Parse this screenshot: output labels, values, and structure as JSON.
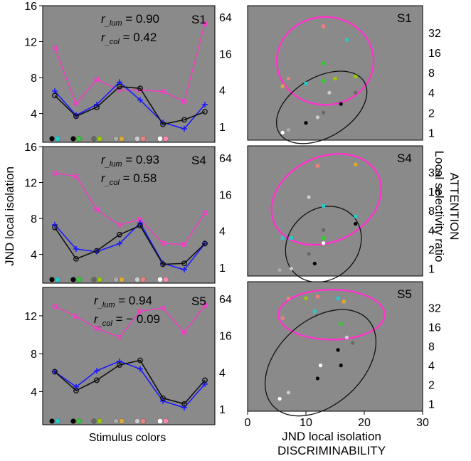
{
  "labels": {
    "left_ylabel": "JND local isolation",
    "left_xlabel": "Stimulus colors",
    "right_xlabel_1": "JND local isolation",
    "right_xlabel_2": "DISCRIMINABILITY",
    "right_ylabel_1": "ATTENTION",
    "right_ylabel_2": "Local selectivity ratio"
  },
  "colors": {
    "panel_bg": "#8a8a8a",
    "magenta": "#ff33cc",
    "blue": "#1a1aff",
    "black": "#111111",
    "stimulus": [
      "#000000",
      "#22cccc",
      "#000000",
      "#33cc33",
      "#666666",
      "#99cc00",
      "#aaaaaa",
      "#ddaa33",
      "#cccccc",
      "#f08080",
      "#ffffff",
      "#ff88aa"
    ]
  },
  "chart_data": [
    {
      "type": "line",
      "subject": "S1",
      "r_lum": "= 0.90",
      "r_col": "= 0.42",
      "left_yticks": [
        "4",
        "8",
        "12",
        "16"
      ],
      "right_yticks": [
        "1",
        "4",
        "16",
        "64"
      ],
      "series": [
        {
          "name": "",
          "axis": "right",
          "color": "magenta",
          "marker": "square",
          "values": [
            20,
            2.4,
            6,
            4,
            4,
            3.8,
            2.6,
            50
          ]
        },
        {
          "name": "",
          "axis": "left",
          "color": "blue",
          "marker": "plus",
          "values": [
            6.5,
            3.8,
            5,
            7.5,
            5.5,
            3,
            2.3,
            5
          ]
        },
        {
          "name": "",
          "axis": "left",
          "color": "black",
          "marker": "circle",
          "values": [
            6,
            3.7,
            4.7,
            7,
            6.8,
            2.8,
            3.3,
            4.2
          ]
        }
      ]
    },
    {
      "type": "line",
      "subject": "S4",
      "r_lum": "= 0.93",
      "r_col": "= 0.58",
      "left_yticks": [
        "4",
        "8",
        "12",
        "16"
      ],
      "right_yticks": [
        "1",
        "4",
        "16",
        "64"
      ],
      "series": [
        {
          "name": "",
          "axis": "right",
          "color": "magenta",
          "marker": "square",
          "values": [
            36,
            32,
            9,
            5,
            6.2,
            2.5,
            2.4,
            8
          ]
        },
        {
          "name": "",
          "axis": "left",
          "color": "blue",
          "marker": "plus",
          "values": [
            7.3,
            4.6,
            4.3,
            5.2,
            7.5,
            3,
            2.3,
            5.2
          ]
        },
        {
          "name": "",
          "axis": "left",
          "color": "black",
          "marker": "circle",
          "values": [
            7,
            3.5,
            4.4,
            6.2,
            7.2,
            2.9,
            3,
            5.2
          ]
        }
      ]
    },
    {
      "type": "line",
      "subject": "S5",
      "r_lum": "= 0.94",
      "r_col": "= − 0.09",
      "left_yticks": [
        "4",
        "8",
        "12"
      ],
      "right_yticks": [
        "1",
        "4",
        "16",
        "64"
      ],
      "series": [
        {
          "name": "",
          "axis": "right",
          "color": "magenta",
          "marker": "square",
          "values": [
            48,
            33,
            21,
            15,
            40,
            45,
            18,
            50
          ]
        },
        {
          "name": "",
          "axis": "left",
          "color": "blue",
          "marker": "plus",
          "values": [
            6.1,
            4.5,
            6.2,
            7.2,
            6.4,
            3,
            2.3,
            4.8
          ]
        },
        {
          "name": "",
          "axis": "left",
          "color": "black",
          "marker": "circle",
          "values": [
            6.1,
            4.1,
            5.2,
            6.8,
            7.3,
            3.3,
            2.7,
            5.2
          ]
        }
      ]
    },
    {
      "type": "scatter",
      "subject": "S1",
      "xlim": [
        0,
        30
      ],
      "xticks": [
        "0",
        "10",
        "20",
        "30"
      ],
      "yticks": [
        "1",
        "2",
        "4",
        "8",
        "16",
        "32"
      ],
      "points": [
        {
          "x": 6,
          "y": 1,
          "c": 10
        },
        {
          "x": 7,
          "y": 1.1,
          "c": 6
        },
        {
          "x": 10,
          "y": 1.4,
          "c": 2
        },
        {
          "x": 12,
          "y": 1.7,
          "c": 8
        },
        {
          "x": 13,
          "y": 2,
          "c": 4
        },
        {
          "x": 16,
          "y": 2.7,
          "c": 0
        },
        {
          "x": 14,
          "y": 4,
          "c": 8
        },
        {
          "x": 18.5,
          "y": 4,
          "c": 4
        },
        {
          "x": 7,
          "y": 6.5,
          "c": 9
        },
        {
          "x": 6,
          "y": 5,
          "c": 7
        },
        {
          "x": 10,
          "y": 5.5,
          "c": 1
        },
        {
          "x": 13,
          "y": 6,
          "c": 3
        },
        {
          "x": 15,
          "y": 6.5,
          "c": 5
        },
        {
          "x": 13,
          "y": 11,
          "c": 3
        },
        {
          "x": 18.5,
          "y": 7,
          "c": 5
        },
        {
          "x": 13,
          "y": 40,
          "c": 9
        },
        {
          "x": 17,
          "y": 25,
          "c": 1
        }
      ],
      "ellipses": [
        {
          "color": "magenta",
          "cx": 13.3,
          "cy": 12,
          "rx": 8.3,
          "ry": 2.2,
          "angle": 0
        },
        {
          "color": "black",
          "cx": 12.7,
          "cy": 2.4,
          "rx": 8.5,
          "ry": 1.5,
          "angle": -31
        }
      ]
    },
    {
      "type": "scatter",
      "subject": "S4",
      "xlim": [
        0,
        30
      ],
      "xticks": [
        "0",
        "10",
        "20",
        "30"
      ],
      "yticks": [
        "1",
        "2",
        "4",
        "8",
        "16",
        "32"
      ],
      "points": [
        {
          "x": 12,
          "y": 40,
          "c": 9
        },
        {
          "x": 18.5,
          "y": 42,
          "c": 7
        },
        {
          "x": 10.5,
          "y": 13,
          "c": 8
        },
        {
          "x": 13,
          "y": 9.5,
          "c": 1
        },
        {
          "x": 18.5,
          "y": 6.5,
          "c": 1
        },
        {
          "x": 6,
          "y": 3,
          "c": 1
        },
        {
          "x": 7.5,
          "y": 3,
          "c": 1
        },
        {
          "x": 13,
          "y": 3,
          "c": 3
        },
        {
          "x": 13,
          "y": 4,
          "c": 4
        },
        {
          "x": 13,
          "y": 2.5,
          "c": 10
        },
        {
          "x": 18.5,
          "y": 5,
          "c": 0
        },
        {
          "x": 10.5,
          "y": 1.7,
          "c": 4
        },
        {
          "x": 11.5,
          "y": 1.2,
          "c": 2
        },
        {
          "x": 7.5,
          "y": 1,
          "c": 8
        },
        {
          "x": 5.5,
          "y": 0.95,
          "c": 6
        }
      ],
      "ellipses": [
        {
          "color": "magenta",
          "cx": 13.5,
          "cy": 12,
          "rx": 9.8,
          "ry": 2.2,
          "angle": -25
        },
        {
          "color": "black",
          "cx": 13,
          "cy": 2.4,
          "rx": 7,
          "ry": 1.8,
          "angle": -45
        }
      ]
    },
    {
      "type": "scatter",
      "subject": "S5",
      "xlim": [
        0,
        30
      ],
      "xticks": [
        "0",
        "10",
        "20",
        "30"
      ],
      "yticks": [
        "1",
        "2",
        "4",
        "8",
        "16",
        "32"
      ],
      "points": [
        {
          "x": 7,
          "y": 45,
          "c": 9
        },
        {
          "x": 12,
          "y": 48,
          "c": 9
        },
        {
          "x": 15.5,
          "y": 45,
          "c": 1
        },
        {
          "x": 16.5,
          "y": 40,
          "c": 7
        },
        {
          "x": 10,
          "y": 45,
          "c": 5
        },
        {
          "x": 11.5,
          "y": 28,
          "c": 1
        },
        {
          "x": 16,
          "y": 18,
          "c": 3
        },
        {
          "x": 6,
          "y": 22,
          "c": 9
        },
        {
          "x": 17,
          "y": 11,
          "c": 8
        },
        {
          "x": 15.5,
          "y": 7,
          "c": 0
        },
        {
          "x": 18,
          "y": 9,
          "c": 4
        },
        {
          "x": 12.5,
          "y": 4,
          "c": 10
        },
        {
          "x": 16,
          "y": 4,
          "c": 2
        },
        {
          "x": 12,
          "y": 2.5,
          "c": 2
        },
        {
          "x": 7,
          "y": 1.5,
          "c": 8
        },
        {
          "x": 5.5,
          "y": 1.2,
          "c": 10
        }
      ],
      "ellipses": [
        {
          "color": "magenta",
          "cx": 14.4,
          "cy": 25,
          "rx": 9.1,
          "ry": 1.3,
          "angle": 0
        },
        {
          "color": "black",
          "cx": 12.5,
          "cy": 4.4,
          "rx": 11,
          "ry": 2.2,
          "angle": -42
        }
      ]
    }
  ]
}
